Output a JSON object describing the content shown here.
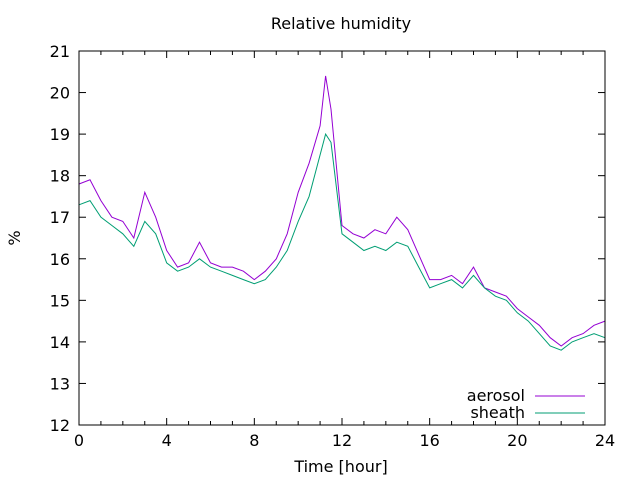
{
  "chart_data": {
    "type": "line",
    "title": "Relative humidity",
    "xlabel": "Time [hour]",
    "ylabel": "%",
    "xlim": [
      0,
      24
    ],
    "ylim": [
      12,
      21
    ],
    "x_ticks": [
      "0",
      "4",
      "8",
      "12",
      "16",
      "20",
      "24"
    ],
    "y_ticks": [
      "12",
      "13",
      "14",
      "15",
      "16",
      "17",
      "18",
      "19",
      "20",
      "21"
    ],
    "grid": false,
    "legend_position": "bottom-right",
    "x": [
      0,
      0.5,
      1,
      1.5,
      2,
      2.5,
      3,
      3.5,
      4,
      4.5,
      5,
      5.5,
      6,
      6.5,
      7,
      7.5,
      8,
      8.5,
      9,
      9.5,
      10,
      10.5,
      11,
      11.25,
      11.5,
      12,
      12.5,
      13,
      13.5,
      14,
      14.5,
      15,
      15.5,
      16,
      16.5,
      17,
      17.5,
      18,
      18.5,
      19,
      19.5,
      20,
      20.5,
      21,
      21.5,
      22,
      22.5,
      23,
      23.5,
      24
    ],
    "series": [
      {
        "name": "aerosol",
        "color": "#9400d3",
        "values": [
          17.8,
          17.9,
          17.4,
          17.0,
          16.9,
          16.5,
          17.6,
          17.0,
          16.2,
          15.8,
          15.9,
          16.4,
          15.9,
          15.8,
          15.8,
          15.7,
          15.5,
          15.7,
          16.0,
          16.6,
          17.6,
          18.3,
          19.2,
          20.4,
          19.6,
          16.8,
          16.6,
          16.5,
          16.7,
          16.6,
          17.0,
          16.7,
          16.1,
          15.5,
          15.5,
          15.6,
          15.4,
          15.8,
          15.3,
          15.2,
          15.1,
          14.8,
          14.6,
          14.4,
          14.1,
          13.9,
          14.1,
          14.2,
          14.4,
          14.5
        ]
      },
      {
        "name": "sheath",
        "color": "#009e73",
        "values": [
          17.3,
          17.4,
          17.0,
          16.8,
          16.6,
          16.3,
          16.9,
          16.6,
          15.9,
          15.7,
          15.8,
          16.0,
          15.8,
          15.7,
          15.6,
          15.5,
          15.4,
          15.5,
          15.8,
          16.2,
          16.9,
          17.5,
          18.5,
          19.0,
          18.8,
          16.6,
          16.4,
          16.2,
          16.3,
          16.2,
          16.4,
          16.3,
          15.8,
          15.3,
          15.4,
          15.5,
          15.3,
          15.6,
          15.3,
          15.1,
          15.0,
          14.7,
          14.5,
          14.2,
          13.9,
          13.8,
          14.0,
          14.1,
          14.2,
          14.1
        ]
      }
    ]
  }
}
